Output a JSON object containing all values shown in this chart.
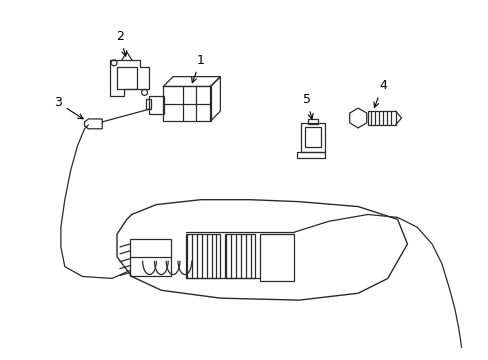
{
  "bg_color": "#ffffff",
  "line_color": "#2a2a2a",
  "lw": 0.9,
  "label_fs": 9,
  "figsize": [
    4.89,
    3.6
  ],
  "dpi": 100
}
